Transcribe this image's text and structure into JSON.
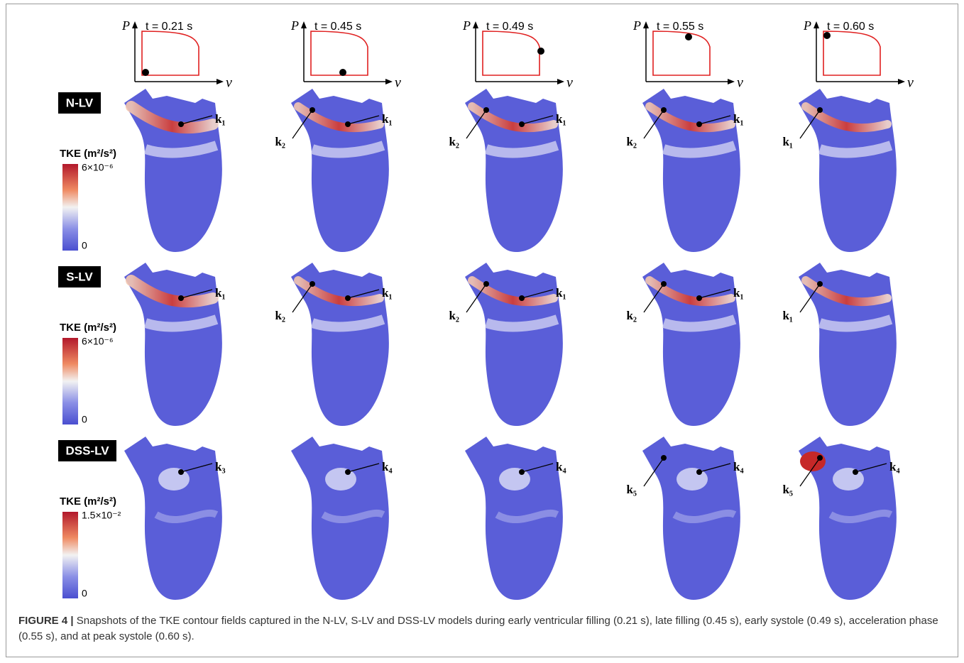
{
  "figure": {
    "pv_axes": {
      "p": "P",
      "v": "v"
    },
    "columns": [
      {
        "time": "t = 0.21 s"
      },
      {
        "time": "t = 0.45 s"
      },
      {
        "time": "t = 0.49 s"
      },
      {
        "time": "t = 0.55 s"
      },
      {
        "time": "t = 0.60 s"
      }
    ],
    "rows": [
      {
        "name": "N-LV",
        "colorbar": {
          "title": "TKE (m²/s²)",
          "max": "6×10⁻⁶",
          "min": "0"
        },
        "panels": [
          {
            "labels": [
              "k₁"
            ]
          },
          {
            "labels": [
              "k₁",
              "k₂"
            ]
          },
          {
            "labels": [
              "k₁",
              "k₂"
            ]
          },
          {
            "labels": [
              "k₁",
              "k₂"
            ]
          },
          {
            "labels": [
              "k₁"
            ]
          }
        ]
      },
      {
        "name": "S-LV",
        "colorbar": {
          "title": "TKE (m²/s²)",
          "max": "6×10⁻⁶",
          "min": "0"
        },
        "panels": [
          {
            "labels": [
              "k₁"
            ]
          },
          {
            "labels": [
              "k₁",
              "k₂"
            ]
          },
          {
            "labels": [
              "k₁",
              "k₂"
            ]
          },
          {
            "labels": [
              "k₁",
              "k₂"
            ]
          },
          {
            "labels": [
              "k₁"
            ]
          }
        ]
      },
      {
        "name": "DSS-LV",
        "colorbar": {
          "title": "TKE (m²/s²)",
          "max": "1.5×10⁻²",
          "min": "0"
        },
        "panels": [
          {
            "labels": [
              "k₃"
            ]
          },
          {
            "labels": [
              "k₄"
            ]
          },
          {
            "labels": [
              "k₄"
            ]
          },
          {
            "labels": [
              "k₄",
              "k₅"
            ]
          },
          {
            "labels": [
              "k₄",
              "k₅"
            ]
          }
        ]
      }
    ]
  },
  "caption": {
    "label": "FIGURE 4 |",
    "text": "Snapshots of the TKE contour fields captured in the N-LV, S-LV and DSS-LV models during early ventricular filling (0.21 s), late filling (0.45 s), early systole (0.49 s), acceleration phase (0.55 s), and at peak systole (0.60 s)."
  }
}
